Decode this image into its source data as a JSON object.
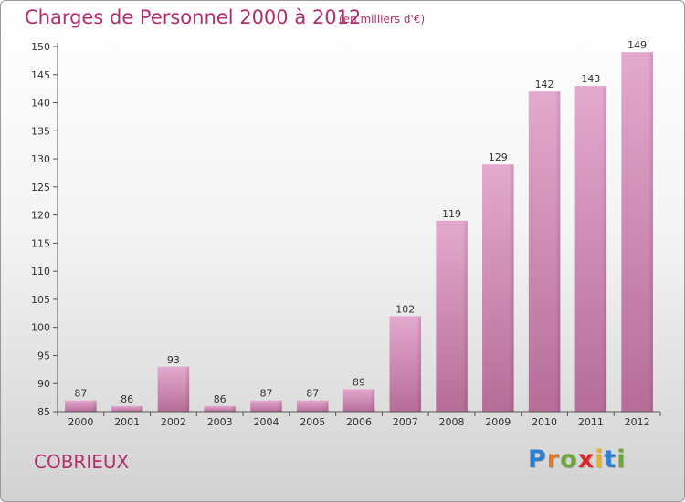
{
  "title": "Charges de Personnel 2000 à 2012",
  "subtitle": "(en milliers d'€)",
  "commune": "COBRIEUX",
  "logo": {
    "text": "Proxiti",
    "letters": [
      {
        "ch": "P",
        "color": "#2f7fd0"
      },
      {
        "ch": "r",
        "color": "#e0791f"
      },
      {
        "ch": "o",
        "color": "#6aa63a"
      },
      {
        "ch": "x",
        "color": "#d82a2a"
      },
      {
        "ch": "i",
        "color": "#e8b21f"
      },
      {
        "ch": "t",
        "color": "#2f7fd0"
      },
      {
        "ch": "i",
        "color": "#6aa63a"
      }
    ]
  },
  "colors": {
    "bar_top": "#e4a9ce",
    "bar_bottom": "#b66d98",
    "accent": "#b0306e"
  },
  "chart_data": {
    "type": "bar",
    "categories": [
      "2000",
      "2001",
      "2002",
      "2003",
      "2004",
      "2005",
      "2006",
      "2007",
      "2008",
      "2009",
      "2010",
      "2011",
      "2012"
    ],
    "values": [
      87,
      86,
      93,
      86,
      87,
      87,
      89,
      102,
      119,
      129,
      142,
      143,
      149
    ],
    "ylim": [
      85,
      150
    ],
    "yticks": [
      85,
      90,
      95,
      100,
      105,
      110,
      115,
      120,
      125,
      130,
      135,
      140,
      145,
      150
    ],
    "grid": false,
    "legend": "none"
  }
}
